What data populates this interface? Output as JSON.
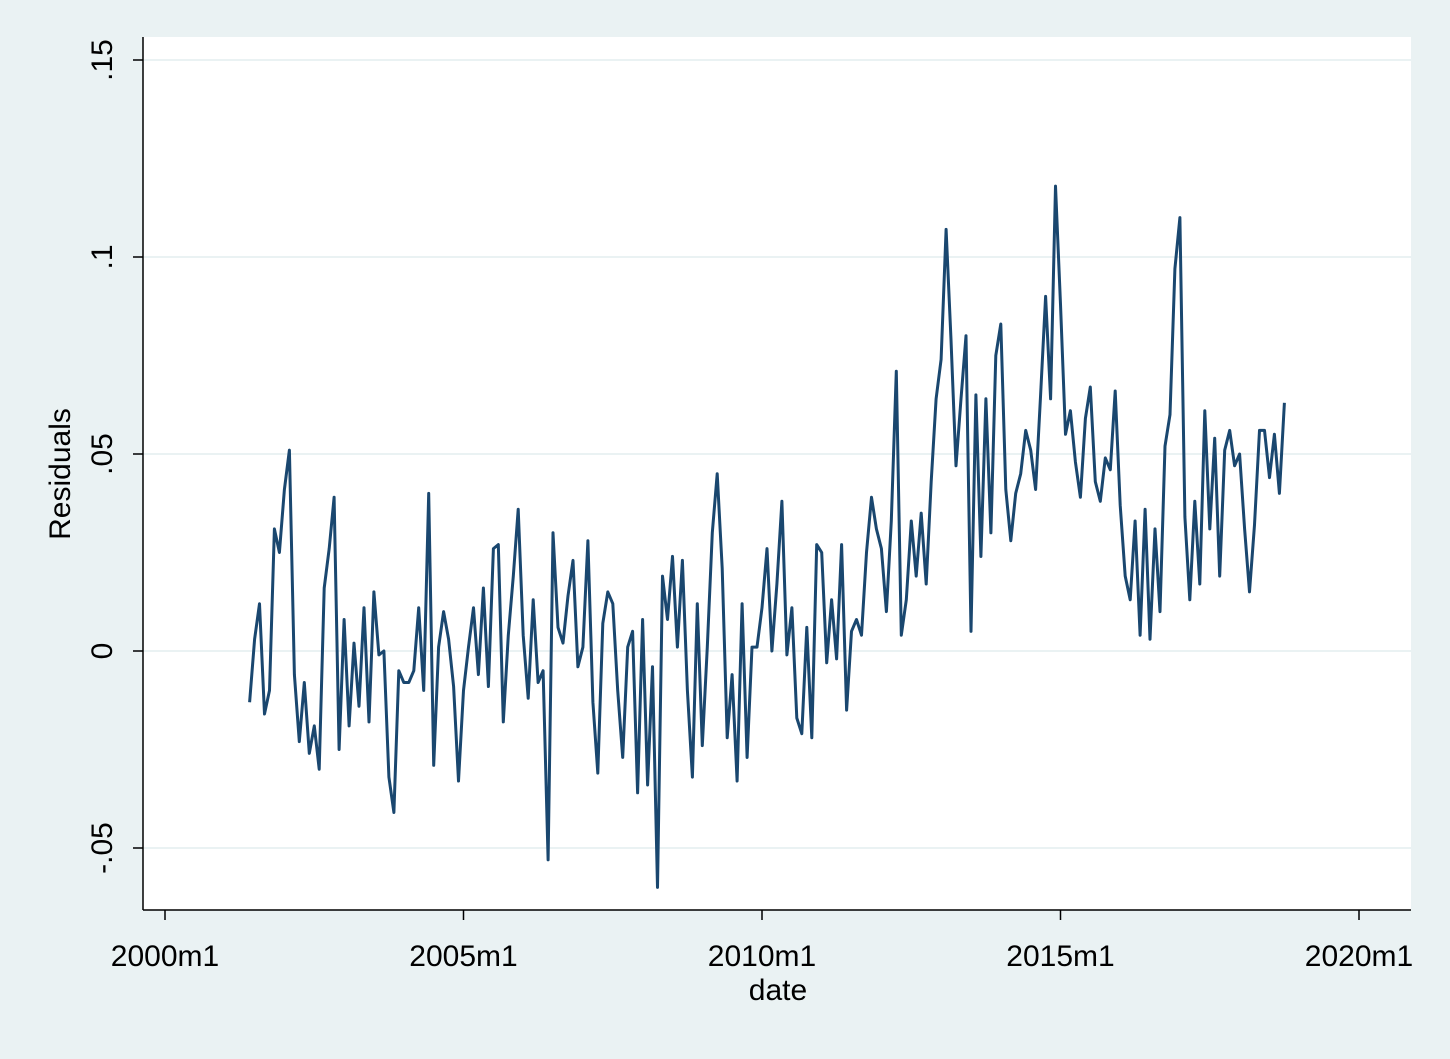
{
  "chart_data": {
    "type": "line",
    "title": "",
    "xlabel": "date",
    "ylabel": "Residuals",
    "xlim": [
      "2000m1",
      "2020m1"
    ],
    "ylim": [
      -0.065,
      0.155
    ],
    "x_ticks": [
      "2000m1",
      "2005m1",
      "2010m1",
      "2015m1",
      "2020m1"
    ],
    "y_ticks": [
      "-.05",
      "0",
      ".05",
      ".1",
      ".15"
    ],
    "y_tick_values": [
      -0.05,
      0,
      0.05,
      0.1,
      0.15
    ],
    "grid": true,
    "legend": "none",
    "colors": {
      "line": "#1a476f",
      "plot_bg": "#ffffff",
      "outer_bg": "#eaf2f3",
      "grid": "#eaf2f3"
    },
    "start": "2001m6",
    "frequency": "monthly",
    "series": [
      {
        "values": [
          -0.013,
          0.003,
          0.012,
          -0.016,
          -0.01,
          0.031,
          0.025,
          0.041,
          0.051,
          -0.006,
          -0.023,
          -0.008,
          -0.026,
          -0.019,
          -0.03,
          0.016,
          0.026,
          0.039,
          -0.025,
          0.008,
          -0.019,
          0.002,
          -0.014,
          0.011,
          -0.018,
          0.015,
          -0.001,
          0,
          -0.032,
          -0.041,
          -0.005,
          -0.008,
          -0.008,
          -0.005,
          0.011,
          -0.01,
          0.04,
          -0.029,
          0.001,
          0.01,
          0.003,
          -0.009,
          -0.033,
          -0.01,
          0.001,
          0.011,
          -0.006,
          0.016,
          -0.009,
          0.026,
          0.027,
          -0.018,
          0.004,
          0.019,
          0.036,
          0.004,
          -0.012,
          0.013,
          -0.008,
          -0.005,
          -0.053,
          0.03,
          0.006,
          0.002,
          0.014,
          0.023,
          -0.004,
          0.001,
          0.028,
          -0.013,
          -0.031,
          0.007,
          0.015,
          0.012,
          -0.01,
          -0.027,
          0.001,
          0.005,
          -0.036,
          0.008,
          -0.034,
          -0.004,
          -0.06,
          0.019,
          0.008,
          0.024,
          0.001,
          0.023,
          -0.01,
          -0.032,
          0.012,
          -0.024,
          0.001,
          0.03,
          0.045,
          0.021,
          -0.022,
          -0.006,
          -0.033,
          0.012,
          -0.027,
          0.001,
          0.001,
          0.011,
          0.026,
          0,
          0.017,
          0.038,
          -0.001,
          0.011,
          -0.017,
          -0.021,
          0.006,
          -0.022,
          0.027,
          0.025,
          -0.003,
          0.013,
          -0.002,
          0.027,
          -0.015,
          0.005,
          0.008,
          0.004,
          0.025,
          0.039,
          0.031,
          0.026,
          0.01,
          0.033,
          0.071,
          0.004,
          0.013,
          0.033,
          0.019,
          0.035,
          0.017,
          0.043,
          0.064,
          0.074,
          0.107,
          0.079,
          0.047,
          0.064,
          0.08,
          0.005,
          0.065,
          0.024,
          0.064,
          0.03,
          0.075,
          0.083,
          0.041,
          0.028,
          0.04,
          0.045,
          0.056,
          0.051,
          0.041,
          0.065,
          0.09,
          0.064,
          0.118,
          0.088,
          0.055,
          0.061,
          0.048,
          0.039,
          0.059,
          0.067,
          0.043,
          0.038,
          0.049,
          0.046,
          0.066,
          0.037,
          0.019,
          0.013,
          0.033,
          0.004,
          0.036,
          0.003,
          0.031,
          0.01,
          0.052,
          0.06,
          0.097,
          0.11,
          0.034,
          0.013,
          0.038,
          0.017,
          0.061,
          0.031,
          0.054,
          0.019,
          0.051,
          0.056,
          0.047,
          0.05,
          0.031,
          0.015,
          0.032,
          0.056,
          0.056,
          0.044,
          0.055,
          0.04,
          0.063
        ]
      }
    ]
  }
}
